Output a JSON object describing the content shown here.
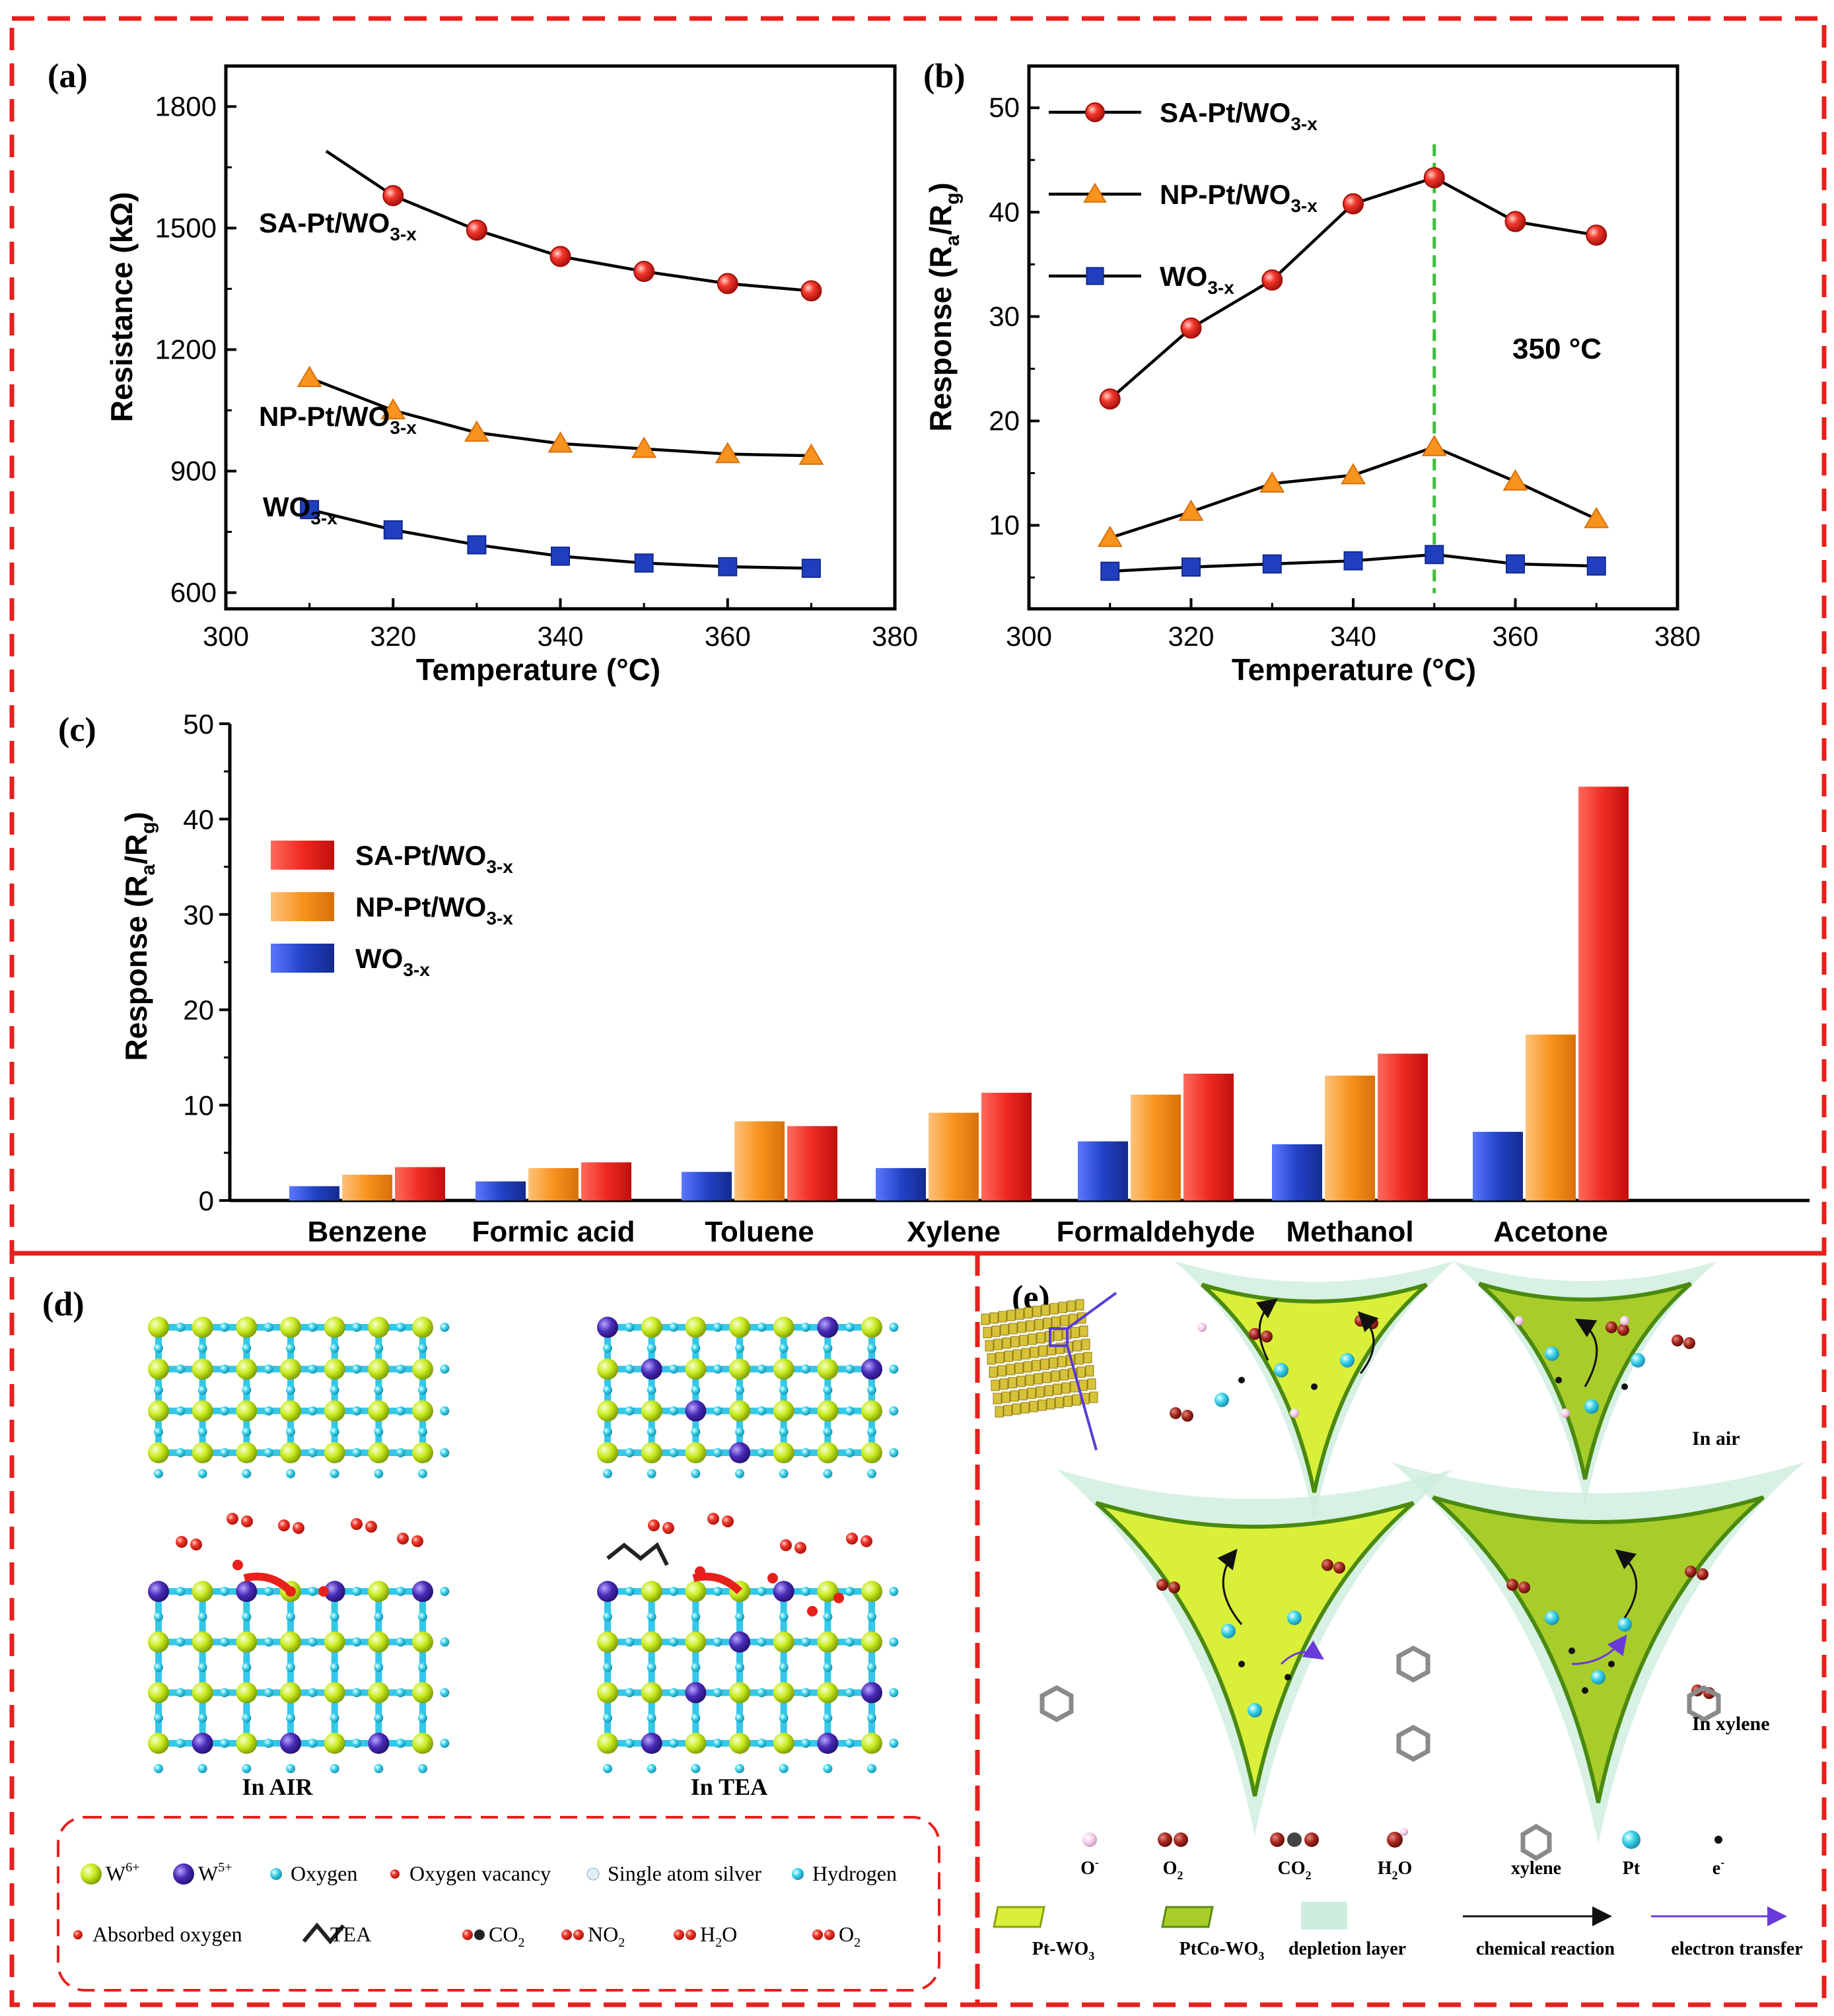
{
  "panels": {
    "a": "(a)",
    "b": "(b)",
    "c": "(c)",
    "d": "(d)",
    "e": "(e)"
  },
  "chart_data": [
    {
      "id": "a",
      "type": "line",
      "xlabel": "Temperature (°C)",
      "ylabel": "Resistance (kΩ)",
      "xlim": [
        300,
        380
      ],
      "ylim": [
        560,
        1900
      ],
      "xticks": [
        300,
        320,
        340,
        360,
        380
      ],
      "yticks": [
        600,
        900,
        1200,
        1500,
        1800
      ],
      "series": [
        {
          "name": "SA-Pt/WO3-x",
          "label_main": "SA-Pt/WO",
          "label_sub": "3-x",
          "marker": "circle",
          "color": "#e8201c",
          "x": [
            320,
            330,
            340,
            350,
            360,
            370
          ],
          "y": [
            1580,
            1495,
            1430,
            1393,
            1363,
            1345
          ],
          "line_x": [
            312,
            320,
            330,
            340,
            350,
            360,
            370
          ],
          "line_y": [
            1690,
            1580,
            1495,
            1430,
            1393,
            1363,
            1345
          ]
        },
        {
          "name": "NP-Pt/WO3-x",
          "label_main": "NP-Pt/WO",
          "label_sub": "3-x",
          "marker": "triangle",
          "color": "#f7931e",
          "x": [
            310,
            320,
            330,
            340,
            350,
            360,
            370
          ],
          "y": [
            1130,
            1050,
            995,
            968,
            955,
            942,
            938
          ]
        },
        {
          "name": "WO3-x",
          "label_main": "WO",
          "label_sub": "3-x",
          "marker": "square",
          "color": "#1f3fbf",
          "x": [
            310,
            320,
            330,
            340,
            350,
            360,
            370
          ],
          "y": [
            805,
            755,
            718,
            690,
            673,
            664,
            660
          ]
        }
      ]
    },
    {
      "id": "b",
      "type": "line",
      "xlabel": "Temperature (°C)",
      "ylabel_main": "Response (R",
      "ylabel_sub1": "a",
      "ylabel_mid": "/R",
      "ylabel_sub2": "g",
      "ylabel_end": ")",
      "xlim": [
        300,
        380
      ],
      "ylim": [
        2,
        54
      ],
      "xticks": [
        300,
        320,
        340,
        360,
        380
      ],
      "yticks": [
        10,
        20,
        30,
        40,
        50
      ],
      "annotation": "350 °C",
      "vline_x": 350,
      "legend": [
        {
          "main": "SA-Pt/WO",
          "sub": "3-x"
        },
        {
          "main": "NP-Pt/WO",
          "sub": "3-x"
        },
        {
          "main": "WO",
          "sub": "3-x"
        }
      ],
      "series": [
        {
          "name": "SA-Pt/WO3-x",
          "marker": "circle",
          "color": "#e8201c",
          "x": [
            310,
            320,
            330,
            340,
            350,
            360,
            370
          ],
          "y": [
            22.1,
            28.9,
            33.5,
            40.8,
            43.3,
            39.1,
            37.8
          ]
        },
        {
          "name": "NP-Pt/WO3-x",
          "marker": "triangle",
          "color": "#f7931e",
          "x": [
            310,
            320,
            330,
            340,
            350,
            360,
            370
          ],
          "y": [
            8.8,
            11.3,
            14.0,
            14.8,
            17.5,
            14.2,
            10.6
          ]
        },
        {
          "name": "WO3-x",
          "marker": "square",
          "color": "#1f3fbf",
          "x": [
            310,
            320,
            330,
            340,
            350,
            360,
            370
          ],
          "y": [
            5.6,
            6.0,
            6.3,
            6.6,
            7.2,
            6.3,
            6.1
          ]
        }
      ]
    },
    {
      "id": "c",
      "type": "bar",
      "ylabel_main": "Response (R",
      "ylabel_sub1": "a",
      "ylabel_mid": "/R",
      "ylabel_sub2": "g",
      "ylabel_end": ")",
      "ylim": [
        0,
        50
      ],
      "yticks": [
        0,
        10,
        20,
        30,
        40,
        50
      ],
      "categories": [
        "Benzene",
        "Formic acid",
        "Toluene",
        "Xylene",
        "Formaldehyde",
        "Methanol",
        "Acetone"
      ],
      "legend": [
        {
          "main": "SA-Pt/WO",
          "sub": "3-x",
          "color": "#e8201c"
        },
        {
          "main": "NP-Pt/WO",
          "sub": "3-x",
          "color": "#f7931e"
        },
        {
          "main": "WO",
          "sub": "3-x",
          "color": "#1f3fbf"
        }
      ],
      "series": [
        {
          "name": "WO3-x",
          "color": "#1f3fbf",
          "values": [
            1.5,
            2.0,
            3.0,
            3.4,
            6.2,
            5.9,
            7.2
          ]
        },
        {
          "name": "NP-Pt/WO3-x",
          "color": "#f7931e",
          "values": [
            2.7,
            3.4,
            8.3,
            9.2,
            11.1,
            13.1,
            17.4
          ]
        },
        {
          "name": "SA-Pt/WO3-x",
          "color": "#e8201c",
          "values": [
            3.5,
            4.0,
            7.8,
            11.3,
            13.3,
            15.4,
            43.4
          ]
        }
      ]
    }
  ],
  "panel_d": {
    "label_air": "In AIR",
    "label_tea": "In TEA",
    "legend": [
      {
        "text": "W",
        "sup": "6+"
      },
      {
        "text": "W",
        "sup": "5+"
      },
      {
        "text": "Oxygen"
      },
      {
        "text": "Oxygen vacancy"
      },
      {
        "text": "Single atom silver"
      },
      {
        "text": "Hydrogen"
      },
      {
        "text": "Absorbed oxygen"
      },
      {
        "text": "TEA"
      },
      {
        "text": "CO",
        "sub": "2"
      },
      {
        "text": "NO",
        "sub": "2"
      },
      {
        "text": "H",
        "sub": "2",
        "tail": "O"
      },
      {
        "text": "O",
        "sub": "2"
      }
    ]
  },
  "panel_e": {
    "label_air": "In air",
    "label_xylene": "In xylene",
    "legend_row1": [
      {
        "text": "O",
        "sup": "-"
      },
      {
        "text": "O",
        "sub": "2"
      },
      {
        "text": "CO",
        "sub": "2"
      },
      {
        "text": "H",
        "sub": "2",
        "tail": "O"
      },
      {
        "text": "xylene"
      },
      {
        "text": "Pt"
      },
      {
        "text": "e",
        "sup": "-"
      }
    ],
    "legend_row2": [
      {
        "text": "Pt-WO",
        "sub": "3"
      },
      {
        "text": "PtCo-WO",
        "sub": "3"
      },
      {
        "text": "depletion layer"
      },
      {
        "text": "chemical reaction"
      },
      {
        "text": "electron transfer"
      }
    ]
  },
  "colors": {
    "frame": "#e8201c",
    "sa": "#e8201c",
    "np": "#f7931e",
    "wo": "#1f3fbf",
    "vline": "#3cbf3c"
  }
}
